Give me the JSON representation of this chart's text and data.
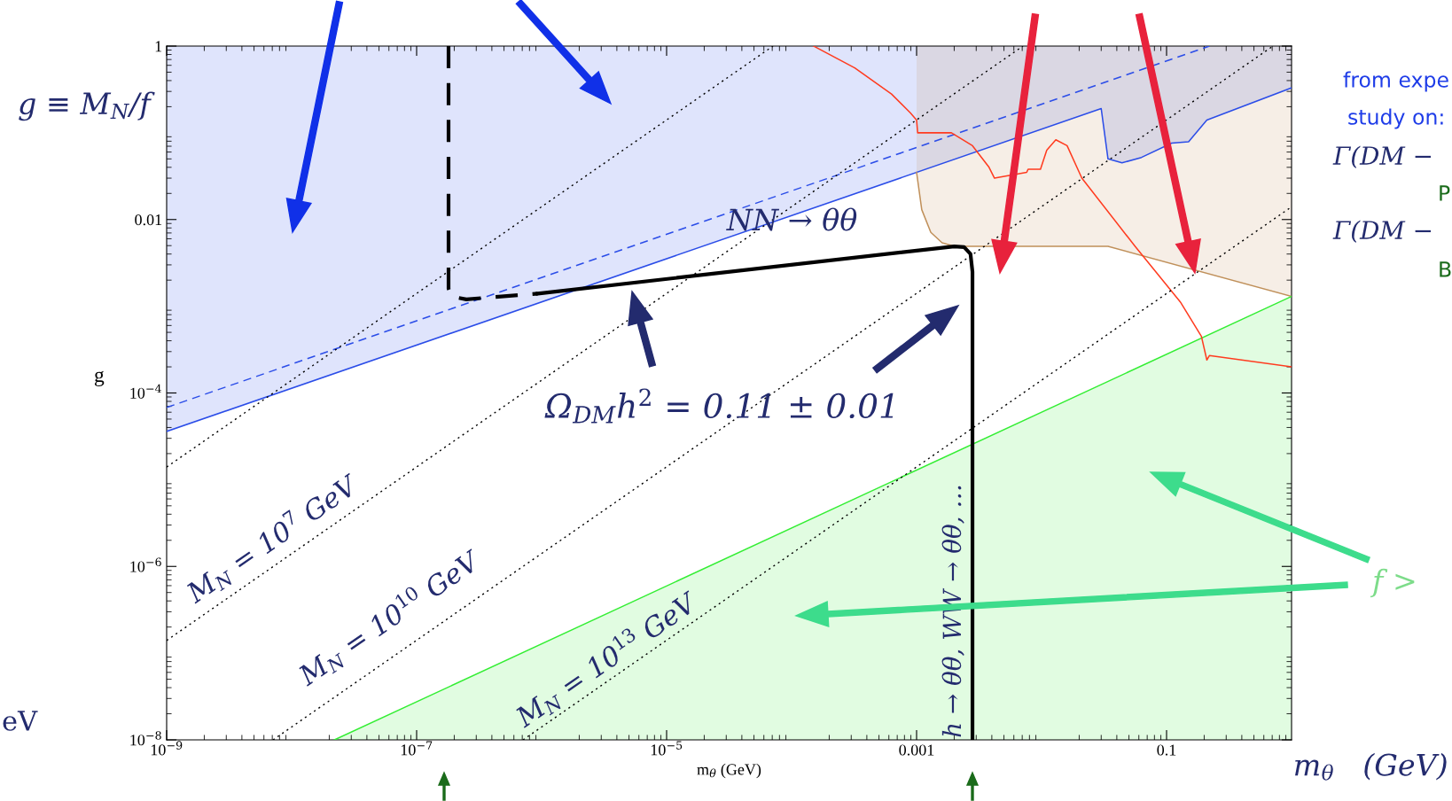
{
  "chart_data": {
    "type": "line",
    "log": "xy",
    "xlim": [
      1e-09,
      1
    ],
    "ylim": [
      1e-08,
      1
    ],
    "xticks": [
      {
        "value": 1e-09,
        "label": "10$^{−9}$"
      },
      {
        "value": 1e-07,
        "label": "10$^{−7}$"
      },
      {
        "value": 1e-05,
        "label": "10$^{−5}$"
      },
      0.001,
      0.1
    ],
    "yticks": [
      {
        "value": 1e-08,
        "label": "10$^{−8}$"
      },
      {
        "value": 1e-06,
        "label": "10$^{−6}$"
      },
      {
        "value": 0.0001,
        "label": "10$^{−4}$"
      },
      0.01,
      1
    ],
    "xlabel": "m$_{θ}$ (GeV)",
    "ylabel": "g",
    "series": [
      {
        "color": "#2b4de8",
        "line_style": "solid",
        "x": [
          1e-09,
          0.03,
          0.034,
          0.044,
          0.063,
          0.11,
          0.15,
          0.21,
          1
        ],
        "values": [
          3.6e-05,
          0.19,
          0.05,
          0.045,
          0.052,
          0.076,
          0.079,
          0.14,
          0.33
        ]
      },
      {
        "color": "#c0905a",
        "line_style": "solid",
        "x": [
          0.001,
          0.0011,
          0.0013,
          0.0016,
          0.002,
          0.034,
          1
        ],
        "values": [
          0.035,
          0.013,
          0.0071,
          0.0054,
          0.0049,
          0.0049,
          0.0013
        ]
      },
      {
        "type": "area",
        "color": "#33ee33",
        "x": [
          2.2e-08,
          1
        ],
        "values": [
          1e-08,
          0.0013
        ]
      },
      {
        "color": "#2b4de8",
        "line_style": "dashed",
        "x": [
          1e-09,
          0.22
        ],
        "values": [
          6.8e-05,
          1
        ]
      },
      {
        "color": "#ff3b1f",
        "line_style": "solid",
        "x": [
          0.00015,
          0.00032,
          0.00063,
          0.00089,
          0.001,
          0.00102,
          0.0019,
          0.0028,
          0.0038,
          0.0042,
          0.0076,
          0.0078,
          0.0098,
          0.011,
          0.013,
          0.016,
          0.021,
          0.056,
          0.13,
          0.19,
          0.21,
          0.22,
          1
        ],
        "values": [
          1,
          0.56,
          0.28,
          0.17,
          0.14,
          0.1,
          0.1,
          0.071,
          0.04,
          0.03,
          0.035,
          0.038,
          0.038,
          0.063,
          0.083,
          0.071,
          0.03,
          0.0049,
          0.0011,
          0.00045,
          0.00024,
          0.00027,
          0.0002
        ]
      },
      {
        "color": "#000000",
        "line_style": "dotted",
        "x": [
          1e-09,
          7.1e-05
        ],
        "values": [
          1.4e-05,
          1
        ]
      },
      {
        "color": "#000000",
        "line_style": "dotted",
        "x": [
          1e-09,
          0.0071
        ],
        "values": [
          1.4e-07,
          1
        ]
      },
      {
        "color": "#000000",
        "line_style": "dotted",
        "x": [
          7.1e-09,
          0.71
        ],
        "values": [
          1e-08,
          1
        ]
      },
      {
        "color": "#000000",
        "line_style": "dotted",
        "x": [
          7.1e-07,
          1
        ],
        "values": [
          1e-08,
          0.014
        ]
      },
      {
        "color": "#000000",
        "line_style": "dashed",
        "x": [
          1.8e-07,
          1.8e-07,
          1.9e-07,
          2.5e-07,
          9.3e-07
        ],
        "values": [
          1,
          0.0016,
          0.0013,
          0.0012,
          0.0014
        ]
      },
      {
        "color": "#000000",
        "line_style": "solid",
        "x": [
          9.3e-07,
          0.002,
          0.0024,
          0.0027,
          0.0028,
          0.0028
        ],
        "values": [
          0.0014,
          0.0049,
          0.0048,
          0.004,
          0.0025,
          1e-08
        ]
      }
    ],
    "annotations": [
      "NN → θθ",
      "Ω$_{DM}$h$^{2}$ = 0.11 ± 0.01",
      "M$_{N}$ = 10$^{7}$ GeV",
      "M$_{N}$ = 10$^{10}$ GeV",
      "M$_{N}$ = 10$^{13}$ GeV",
      "h → θθ, WW → θθ, …",
      "g ≡ M$_{N}$/f",
      "from expe",
      "study on:",
      "Γ(DM −",
      "P",
      "Γ(DM −",
      "B",
      "f >",
      "eV",
      "m$_{θ}$   (GeV)"
    ]
  }
}
